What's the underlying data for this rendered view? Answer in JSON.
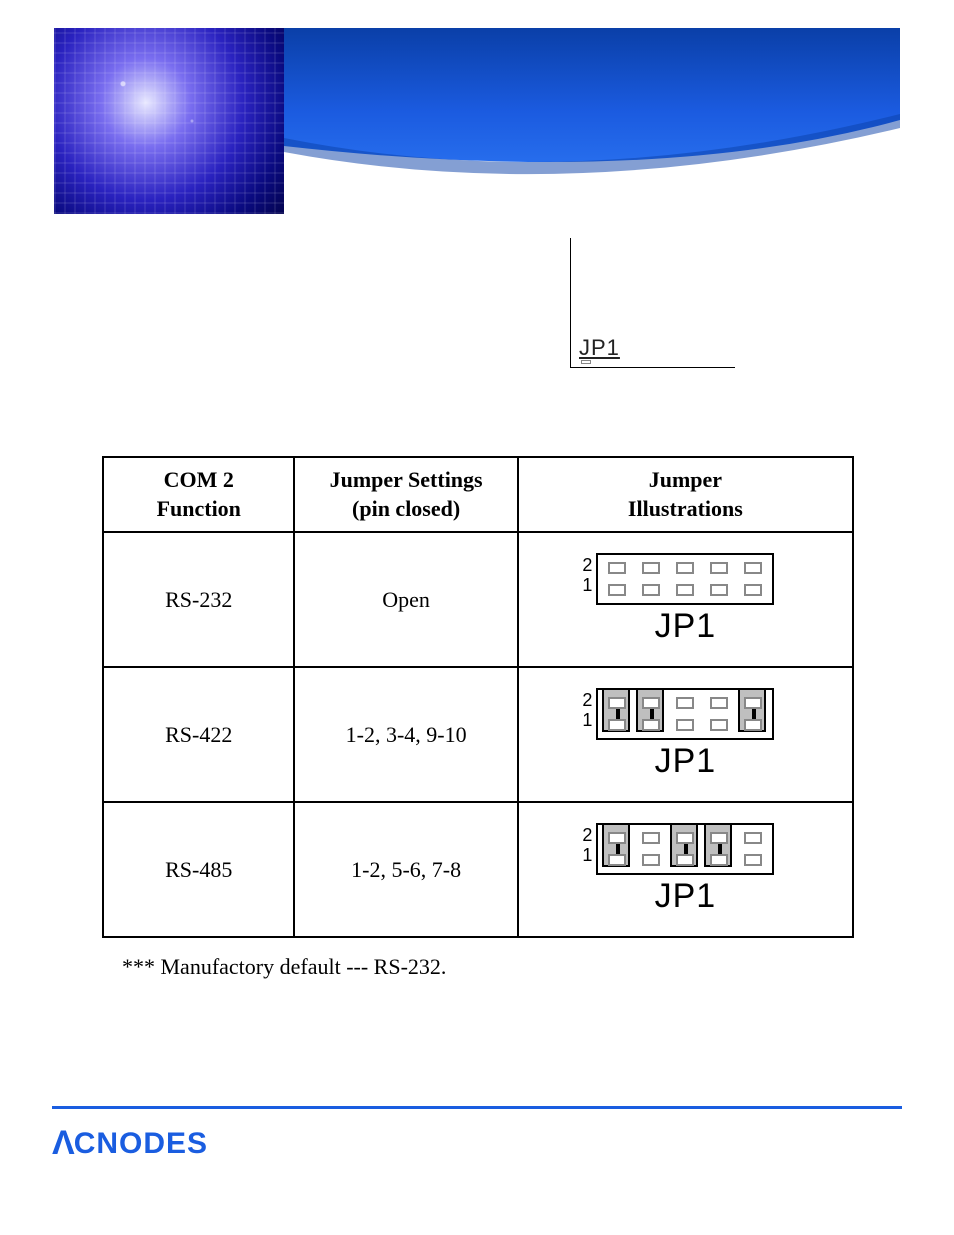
{
  "banner": {
    "blue_top": "#0a3fa8",
    "blue_mid": "#1a5de0",
    "pcb_gradient_stops": [
      "#e8e8ff",
      "#7a6ef0",
      "#2a22c0",
      "#0a0a80",
      "#040450"
    ]
  },
  "jp1_small": {
    "label": "JP1"
  },
  "table": {
    "headers": {
      "col1_line1": "COM 2",
      "col1_line2": "Function",
      "col2_line1": "Jumper Settings",
      "col2_line2": "(pin closed)",
      "col3_line1": "Jumper",
      "col3_line2": "Illustrations"
    },
    "rows": [
      {
        "function": "RS-232",
        "setting": "Open",
        "jumper": {
          "name": "JP1",
          "row_top_label": "2",
          "row_bottom_label": "1",
          "columns": 5,
          "caps": []
        }
      },
      {
        "function": "RS-422",
        "setting": "1-2, 3-4, 9-10",
        "jumper": {
          "name": "JP1",
          "row_top_label": "2",
          "row_bottom_label": "1",
          "columns": 5,
          "caps": [
            1,
            2,
            5
          ]
        }
      },
      {
        "function": "RS-485",
        "setting": "1-2, 5-6, 7-8",
        "jumper": {
          "name": "JP1",
          "row_top_label": "2",
          "row_bottom_label": "1",
          "columns": 5,
          "caps": [
            1,
            3,
            4
          ]
        }
      }
    ],
    "border_color": "#000000",
    "header_fontsize": 22,
    "cell_fontsize": 22,
    "pin_border_color": "#888888",
    "cap_fill": "#bfbfbf",
    "jumper_name_fontsize": 34
  },
  "footnote": "*** Manufactory default --- RS-232.",
  "footer": {
    "rule_color": "#1a5de0",
    "logo_caret": "Λ",
    "logo_text": "CNODES",
    "logo_color": "#1a5de0"
  }
}
